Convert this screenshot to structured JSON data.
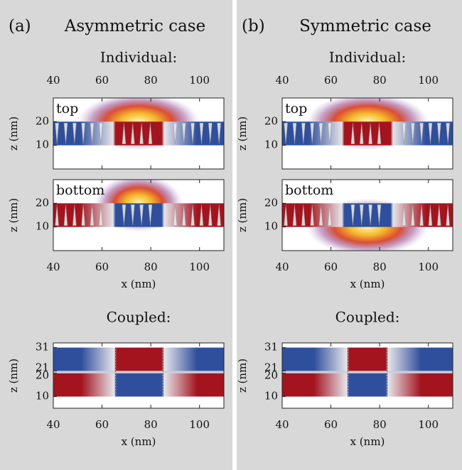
{
  "panels": [
    {
      "label": "(a)",
      "title": "Asymmetric case",
      "individual_heading": "Individual:",
      "coupled_heading": "Coupled:",
      "plots": [
        {
          "tag": "top"
        },
        {
          "tag": "bottom"
        }
      ]
    },
    {
      "label": "(b)",
      "title": "Symmetric case",
      "individual_heading": "Individual:",
      "coupled_heading": "Coupled:",
      "plots": [
        {
          "tag": "top"
        },
        {
          "tag": "bottom"
        }
      ]
    }
  ],
  "axes": {
    "x_label": "x (nm)",
    "y_label": "z (nm)",
    "xlim": [
      40,
      110
    ],
    "xticks": [
      40,
      60,
      80,
      100
    ],
    "individual": {
      "ylim": [
        0,
        30
      ],
      "yticks": [
        10,
        20
      ]
    },
    "coupled": {
      "ylim": [
        5,
        33
      ],
      "yticks": [
        10,
        20,
        21,
        31
      ]
    }
  }
}
